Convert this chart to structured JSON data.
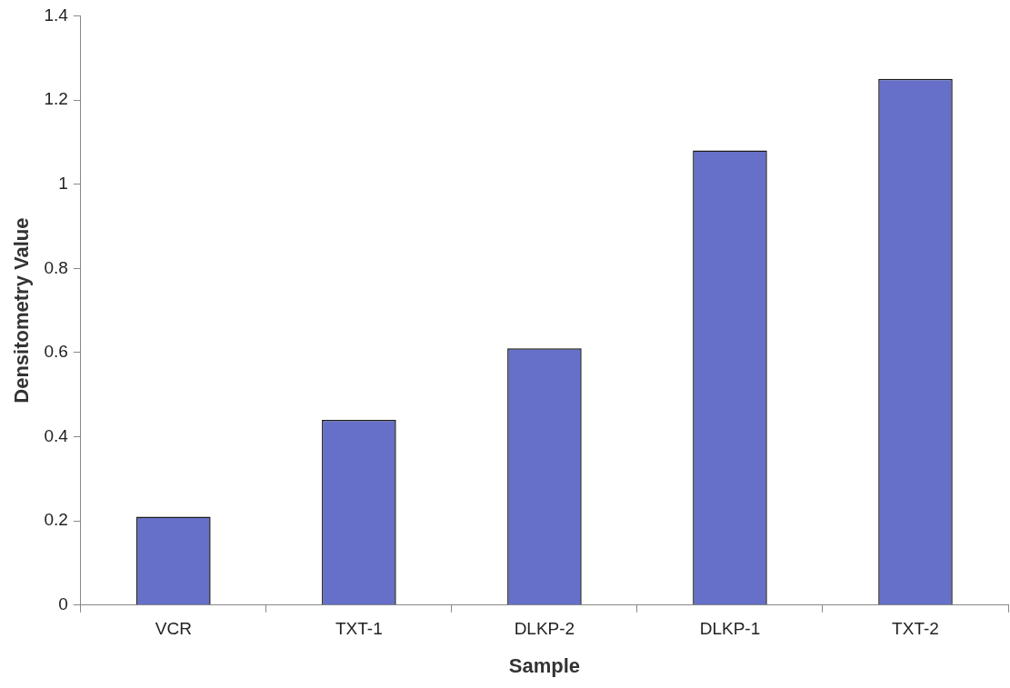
{
  "chart_data": {
    "type": "bar",
    "xlabel": "Sample",
    "ylabel": "Densitometry Value",
    "categories": [
      "VCR",
      "TXT-1",
      "DLKP-2",
      "DLKP-1",
      "TXT-2"
    ],
    "values": [
      0.21,
      0.44,
      0.61,
      1.08,
      1.25
    ],
    "color": "#6670c8",
    "ylim": [
      0,
      1.4
    ],
    "yticks": [
      0,
      0.2,
      0.4,
      0.6,
      0.8,
      1,
      1.2,
      1.4
    ],
    "grid": false,
    "legend": false
  }
}
